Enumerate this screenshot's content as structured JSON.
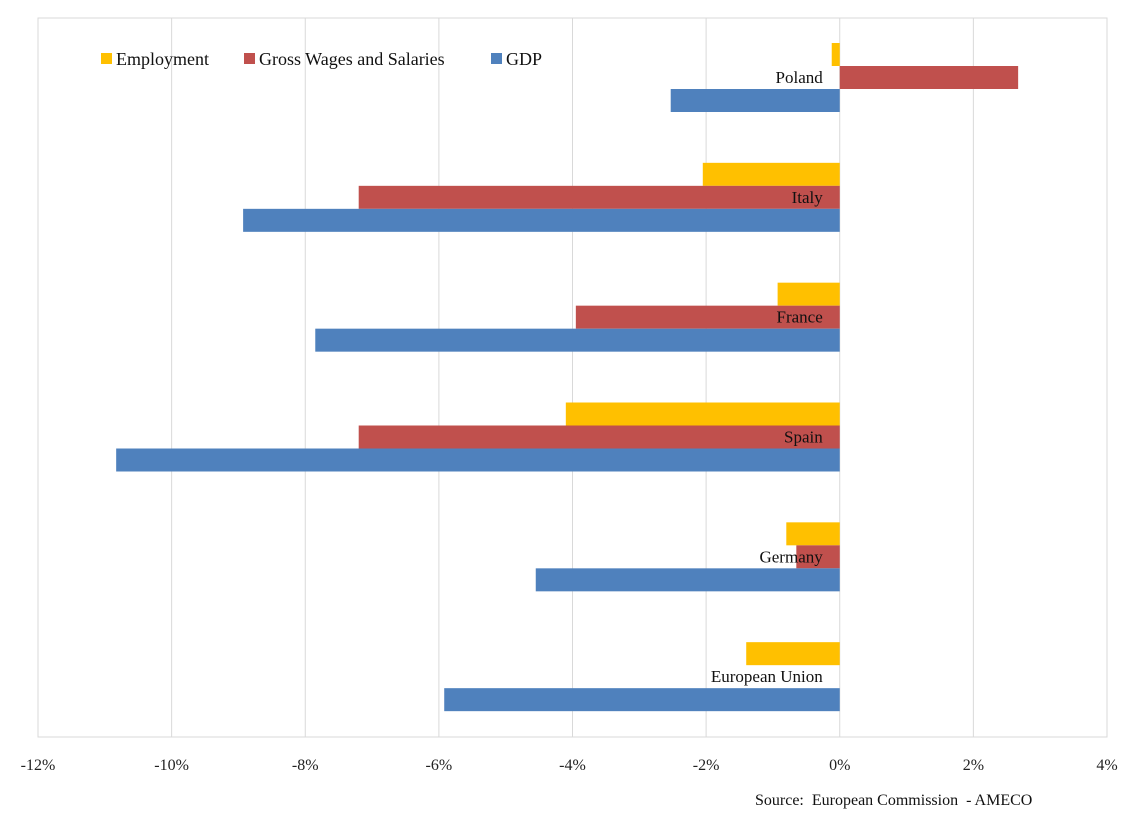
{
  "chart_data": {
    "type": "bar",
    "orientation": "horizontal",
    "categories": [
      "Poland",
      "Italy",
      "France",
      "Spain",
      "Germany",
      "European Union"
    ],
    "series": [
      {
        "name": "Employment",
        "color": "#FFC000",
        "values": [
          -0.12,
          -2.05,
          -0.93,
          -4.1,
          -0.8,
          -1.4
        ]
      },
      {
        "name": "Gross Wages and Salaries",
        "color": "#C0504D",
        "values": [
          2.67,
          -7.2,
          -3.95,
          -7.2,
          -0.65,
          null
        ]
      },
      {
        "name": "GDP",
        "color": "#4F81BD",
        "values": [
          -2.53,
          -8.93,
          -7.85,
          -10.83,
          -4.55,
          -5.92
        ]
      }
    ],
    "xlim": [
      -12,
      4
    ],
    "xticks": [
      -12,
      -10,
      -8,
      -6,
      -4,
      -2,
      0,
      2,
      4
    ],
    "tick_labels": [
      "-12%",
      "-10%",
      "-8%",
      "-6%",
      "-4%",
      "-2%",
      "0%",
      "2%",
      "4%"
    ],
    "grid": true,
    "legend_position": "top-left",
    "source": "Source:  European Commission  - AMECO"
  }
}
